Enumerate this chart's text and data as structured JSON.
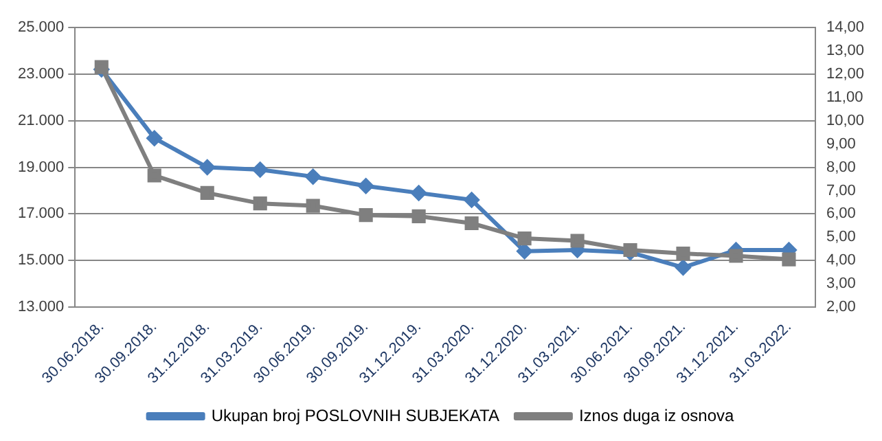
{
  "chart_data": {
    "type": "line",
    "categories": [
      "30.06.2018.",
      "30.09.2018.",
      "31.12.2018.",
      "31.03.2019.",
      "30.06.2019.",
      "30.09.2019.",
      "31.12.2019.",
      "31.03.2020.",
      "31.12.2020.",
      "31.03.2021.",
      "30.06.2021.",
      "30.09.2021.",
      "31.12.2021.",
      "31.03.2022."
    ],
    "series": [
      {
        "name": "Ukupan broj POSLOVNIH SUBJEKATA",
        "color": "#4a7ebb",
        "marker": "diamond",
        "values": [
          23200,
          20250,
          19000,
          18900,
          18600,
          18200,
          17900,
          17600,
          15400,
          15450,
          15350,
          14700,
          15450,
          15450
        ]
      },
      {
        "name": "Iznos duga iz osnova",
        "color": "#7f7f7f",
        "marker": "square",
        "axis": "y2",
        "values": [
          12.3,
          7.65,
          6.9,
          6.45,
          6.35,
          5.95,
          5.9,
          5.6,
          4.95,
          4.85,
          4.45,
          4.3,
          4.2,
          4.05
        ]
      }
    ],
    "ylim": [
      13000,
      25000
    ],
    "yticks": [
      {
        "value": 13000,
        "label": "13.000"
      },
      {
        "value": 15000,
        "label": "15.000"
      },
      {
        "value": 17000,
        "label": "17.000"
      },
      {
        "value": 19000,
        "label": "19.000"
      },
      {
        "value": 21000,
        "label": "21.000"
      },
      {
        "value": 23000,
        "label": "23.000"
      },
      {
        "value": 25000,
        "label": "25.000"
      }
    ],
    "y2lim": [
      2,
      14
    ],
    "y2ticks": [
      {
        "value": 2,
        "label": "2,00"
      },
      {
        "value": 3,
        "label": "3,00"
      },
      {
        "value": 4,
        "label": "4,00"
      },
      {
        "value": 5,
        "label": "5,00"
      },
      {
        "value": 6,
        "label": "6,00"
      },
      {
        "value": 7,
        "label": "7,00"
      },
      {
        "value": 8,
        "label": "8,00"
      },
      {
        "value": 9,
        "label": "9,00"
      },
      {
        "value": 10,
        "label": "10,00"
      },
      {
        "value": 11,
        "label": "11,00"
      },
      {
        "value": 12,
        "label": "12,00"
      },
      {
        "value": 13,
        "label": "13,00"
      },
      {
        "value": 14,
        "label": "14,00"
      }
    ],
    "grid": "y",
    "legend": "bottom"
  }
}
